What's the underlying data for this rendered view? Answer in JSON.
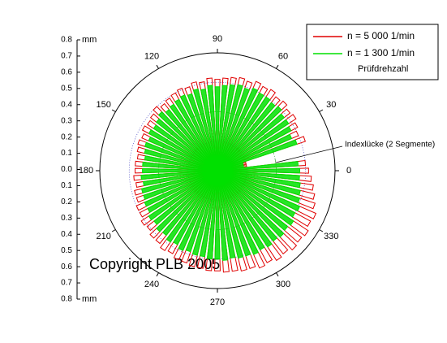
{
  "chart_data": {
    "type": "polar",
    "annotation": "Indexlücke (2 Segmente)",
    "watermark": "Copyright PLB 2005",
    "legend_title": "Prüfdrehzahl",
    "legend_position": "upper right",
    "y_unit": "mm",
    "ylim": [
      -0.8,
      0.8
    ],
    "yticks": [
      0.8,
      0.7,
      0.6,
      0.5,
      0.4,
      0.3,
      0.2,
      0.1,
      {
        "value": 0,
        "label": "0.0"
      },
      {
        "value": -0.1,
        "label": "0.1"
      },
      {
        "value": -0.2,
        "label": "0.2"
      },
      {
        "value": -0.3,
        "label": "0.3"
      },
      {
        "value": -0.4,
        "label": "0.4"
      },
      {
        "value": -0.5,
        "label": "0.5"
      },
      {
        "value": -0.6,
        "label": "0.6"
      },
      {
        "value": -0.7,
        "label": "0.7"
      },
      {
        "value": -0.8,
        "label": "0.8"
      }
    ],
    "rlim": [
      0,
      0.8
    ],
    "rticks": [
      0.2,
      0.4,
      0.6,
      0.8
    ],
    "angle_ticks": [
      0,
      30,
      60,
      90,
      120,
      150,
      180,
      210,
      240,
      270,
      300,
      330
    ],
    "x": [
      0,
      5,
      10,
      15,
      20,
      25,
      30,
      35,
      40,
      45,
      50,
      55,
      60,
      65,
      70,
      75,
      80,
      85,
      90,
      95,
      100,
      105,
      110,
      115,
      120,
      125,
      130,
      135,
      140,
      145,
      150,
      155,
      160,
      165,
      170,
      175,
      180,
      185,
      190,
      195,
      200,
      205,
      210,
      215,
      220,
      225,
      230,
      235,
      240,
      245,
      250,
      255,
      260,
      265,
      270,
      275,
      280,
      285,
      290,
      295,
      300,
      305,
      310,
      315,
      320,
      325,
      330,
      335,
      340,
      345,
      350,
      355
    ],
    "series": [
      {
        "name": "n = 5 000 1/min",
        "color": "#e00000",
        "values": [
          0.62,
          0.6,
          0.2,
          0.2,
          0.63,
          0.6,
          0.62,
          0.64,
          0.63,
          0.65,
          0.64,
          0.66,
          0.65,
          0.66,
          0.64,
          0.65,
          0.64,
          0.63,
          0.62,
          0.63,
          0.61,
          0.62,
          0.6,
          0.61,
          0.6,
          0.59,
          0.58,
          0.6,
          0.58,
          0.57,
          0.58,
          0.56,
          0.57,
          0.56,
          0.55,
          0.56,
          0.56,
          0.57,
          0.56,
          0.58,
          0.58,
          0.6,
          0.6,
          0.62,
          0.61,
          0.63,
          0.63,
          0.65,
          0.64,
          0.66,
          0.66,
          0.67,
          0.67,
          0.68,
          0.68,
          0.69,
          0.69,
          0.7,
          0.7,
          0.72,
          0.71,
          0.73,
          0.72,
          0.74,
          0.73,
          0.74,
          0.72,
          0.73,
          0.7,
          0.68,
          0.66,
          0.64
        ]
      },
      {
        "name": "n = 1 300 1/min",
        "color": "#00e000",
        "values": [
          0.56,
          0.55,
          0.18,
          0.18,
          0.57,
          0.55,
          0.57,
          0.58,
          0.58,
          0.6,
          0.59,
          0.6,
          0.6,
          0.61,
          0.59,
          0.6,
          0.59,
          0.58,
          0.57,
          0.58,
          0.56,
          0.57,
          0.55,
          0.56,
          0.55,
          0.54,
          0.53,
          0.55,
          0.53,
          0.52,
          0.53,
          0.51,
          0.52,
          0.51,
          0.5,
          0.51,
          0.51,
          0.52,
          0.51,
          0.53,
          0.53,
          0.54,
          0.54,
          0.56,
          0.55,
          0.57,
          0.56,
          0.58,
          0.57,
          0.59,
          0.58,
          0.59,
          0.59,
          0.6,
          0.6,
          0.61,
          0.6,
          0.61,
          0.61,
          0.62,
          0.61,
          0.62,
          0.61,
          0.62,
          0.61,
          0.62,
          0.6,
          0.61,
          0.59,
          0.58,
          0.57,
          0.56
        ]
      }
    ]
  }
}
